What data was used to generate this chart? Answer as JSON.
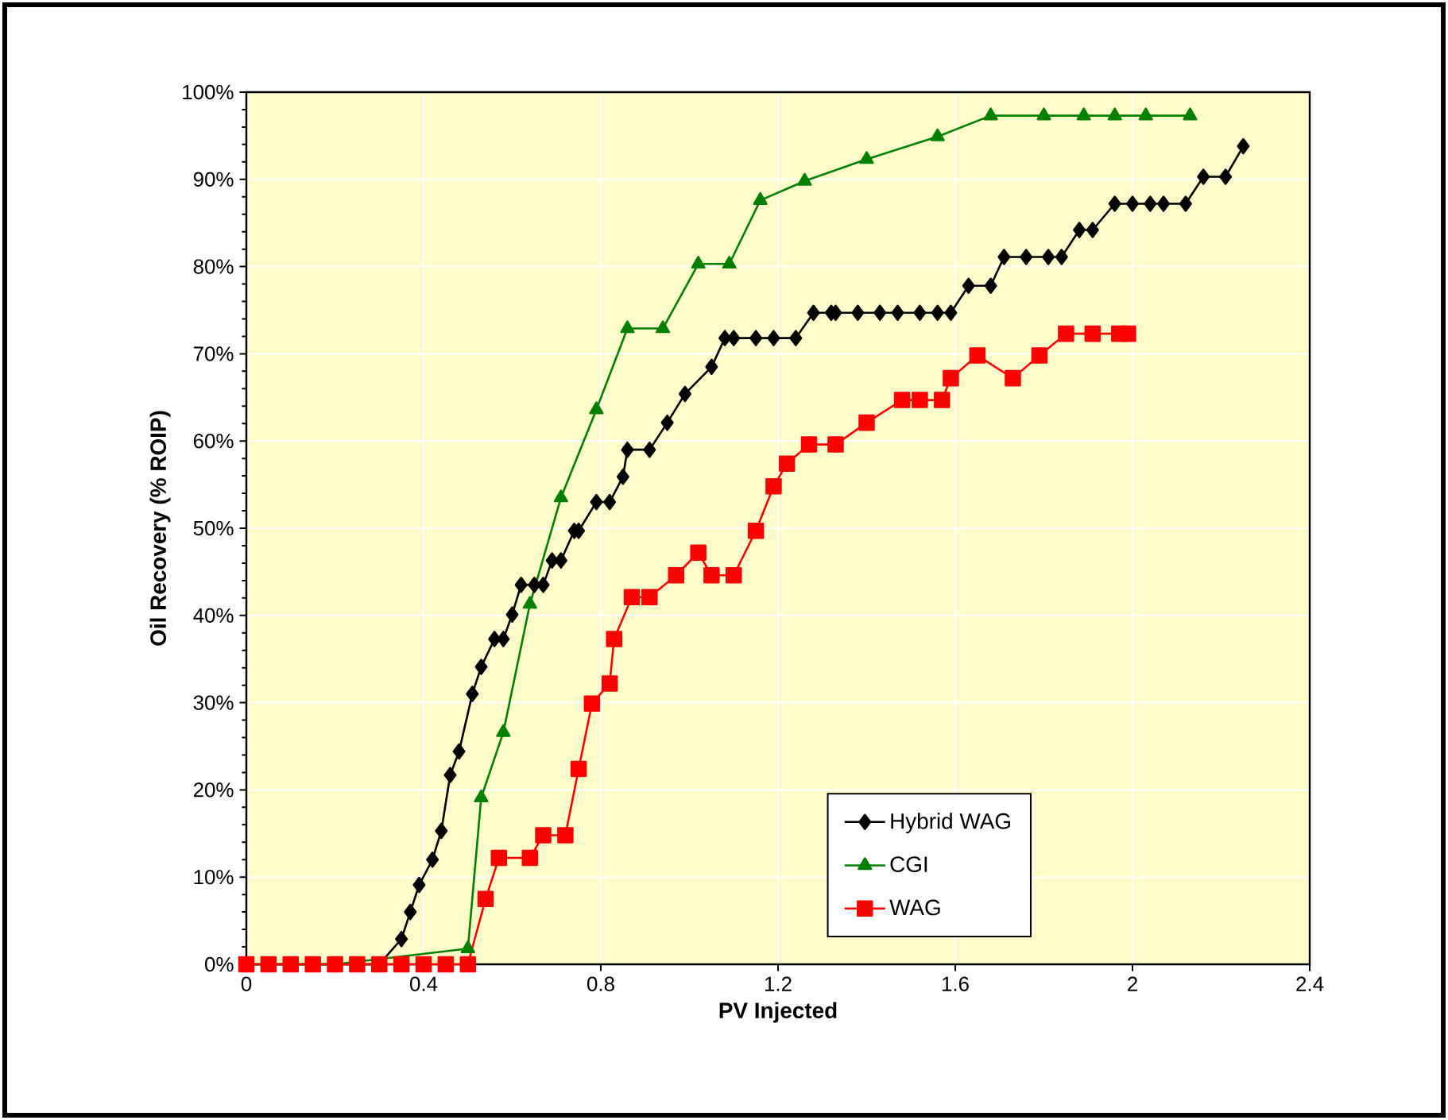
{
  "chart_data": {
    "type": "line",
    "xlabel": "PV Injected",
    "ylabel": "Oil Recovery (% ROIP)",
    "xlim": [
      0,
      2.4
    ],
    "ylim": [
      0,
      100
    ],
    "xticks": [
      0,
      0.4,
      0.8,
      1.2,
      1.6,
      2,
      2.4
    ],
    "yticks": [
      {
        "value": 0,
        "label": "0%"
      },
      {
        "value": 10,
        "label": "10%"
      },
      {
        "value": 20,
        "label": "20%"
      },
      {
        "value": 30,
        "label": "30%"
      },
      {
        "value": 40,
        "label": "40%"
      },
      {
        "value": 50,
        "label": "50%"
      },
      {
        "value": 60,
        "label": "60%"
      },
      {
        "value": 70,
        "label": "70%"
      },
      {
        "value": 80,
        "label": "80%"
      },
      {
        "value": 90,
        "label": "90%"
      },
      {
        "value": 100,
        "label": "100%"
      }
    ],
    "grid": true,
    "legend": "bottom right",
    "line_style": "solid",
    "series": [
      {
        "name": "Hybrid WAG",
        "color": "#000000",
        "marker": "diamond",
        "x": [
          0,
          0.2,
          0.3,
          0.35,
          0.37,
          0.39,
          0.42,
          0.44,
          0.46,
          0.48,
          0.51,
          0.53,
          0.56,
          0.58,
          0.6,
          0.62,
          0.65,
          0.67,
          0.69,
          0.71,
          0.74,
          0.75,
          0.79,
          0.82,
          0.85,
          0.86,
          0.91,
          0.95,
          0.99,
          1.05,
          1.08,
          1.1,
          1.15,
          1.19,
          1.24,
          1.28,
          1.32,
          1.33,
          1.38,
          1.43,
          1.47,
          1.52,
          1.56,
          1.59,
          1.63,
          1.68,
          1.71,
          1.76,
          1.81,
          1.84,
          1.88,
          1.91,
          1.96,
          2.0,
          2.04,
          2.07,
          2.12,
          2.16,
          2.21,
          2.25
        ],
        "values": [
          0,
          0,
          0,
          2.9,
          6.0,
          9.1,
          12.0,
          15.3,
          21.7,
          24.4,
          31.0,
          34.1,
          37.3,
          37.3,
          40.1,
          43.5,
          43.5,
          43.5,
          46.3,
          46.3,
          49.7,
          49.7,
          53.0,
          53.0,
          55.9,
          59.0,
          59.0,
          62.1,
          65.4,
          68.5,
          71.8,
          71.8,
          71.8,
          71.8,
          71.8,
          74.7,
          74.7,
          74.7,
          74.7,
          74.7,
          74.7,
          74.7,
          74.7,
          74.7,
          77.8,
          77.8,
          81.1,
          81.1,
          81.1,
          81.1,
          84.2,
          84.2,
          87.2,
          87.2,
          87.2,
          87.2,
          87.2,
          90.3,
          90.3,
          93.8
        ]
      },
      {
        "name": "CGI",
        "color": "#008000",
        "marker": "triangle",
        "x": [
          0,
          0.2,
          0.5,
          0.53,
          0.58,
          0.64,
          0.71,
          0.79,
          0.86,
          0.94,
          1.02,
          1.09,
          1.16,
          1.26,
          1.4,
          1.56,
          1.68,
          1.8,
          1.89,
          1.96,
          2.03,
          2.13
        ],
        "values": [
          0,
          0,
          1.8,
          19.1,
          26.6,
          41.3,
          53.5,
          63.6,
          72.9,
          72.9,
          80.3,
          80.3,
          87.6,
          89.8,
          92.3,
          94.9,
          97.3,
          97.3,
          97.3,
          97.3,
          97.3,
          97.3
        ]
      },
      {
        "name": "WAG",
        "color": "#ff0000",
        "marker": "square",
        "x": [
          0,
          0.05,
          0.1,
          0.15,
          0.2,
          0.25,
          0.3,
          0.35,
          0.4,
          0.45,
          0.5,
          0.54,
          0.57,
          0.64,
          0.67,
          0.72,
          0.75,
          0.78,
          0.82,
          0.83,
          0.87,
          0.91,
          0.97,
          1.02,
          1.05,
          1.1,
          1.15,
          1.19,
          1.22,
          1.27,
          1.33,
          1.4,
          1.48,
          1.52,
          1.57,
          1.59,
          1.65,
          1.73,
          1.79,
          1.85,
          1.91,
          1.97,
          1.99
        ],
        "values": [
          0,
          0,
          0,
          0,
          0,
          0,
          0,
          0,
          0,
          0,
          0,
          7.5,
          12.2,
          12.2,
          14.8,
          14.8,
          22.4,
          29.9,
          32.2,
          37.3,
          42.1,
          42.1,
          44.6,
          47.2,
          44.6,
          44.6,
          49.7,
          54.8,
          57.4,
          59.6,
          59.6,
          62.1,
          64.7,
          64.7,
          64.7,
          67.2,
          69.8,
          67.2,
          69.8,
          72.3,
          72.3,
          72.3,
          72.3
        ]
      }
    ]
  }
}
